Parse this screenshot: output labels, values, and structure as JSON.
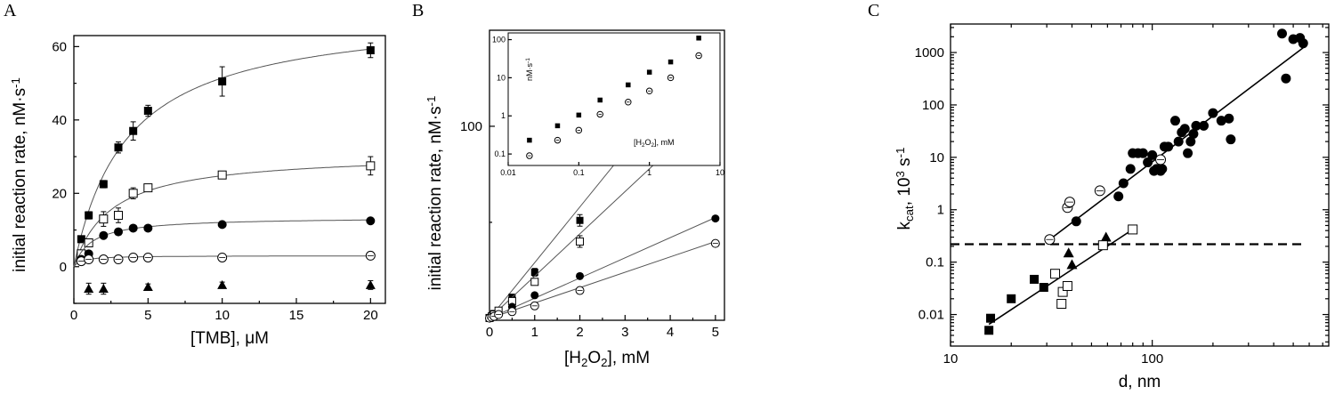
{
  "chart_data": [
    {
      "panel": "A",
      "type": "scatter",
      "xlabel": "[TMB], μM",
      "ylabel": "initial reaction rate, nM·s",
      "ylabel_sup": "-1",
      "xlim": [
        0,
        21
      ],
      "ylim": [
        -10,
        63
      ],
      "xticks": [
        0,
        5,
        10,
        15,
        20
      ],
      "yticks": [
        0,
        20,
        40,
        60
      ],
      "series": [
        {
          "marker": "filled-square",
          "fit": {
            "vmax": 70,
            "km": 3.6
          },
          "x": [
            0.5,
            1,
            2,
            3,
            4,
            5,
            10,
            20
          ],
          "y": [
            7.5,
            14,
            22.5,
            32.5,
            37,
            42.5,
            50.5,
            59
          ],
          "err": [
            0.8,
            1,
            1,
            1.5,
            2.5,
            1.5,
            4,
            2
          ]
        },
        {
          "marker": "open-square",
          "fit": {
            "vmax": 31,
            "km": 2.5
          },
          "x": [
            0.5,
            1,
            2,
            3,
            4,
            5,
            10,
            20
          ],
          "y": [
            3.5,
            6.5,
            13,
            14,
            20,
            21.5,
            25,
            27.5
          ],
          "err": [
            0.8,
            1,
            2,
            2,
            1.5,
            1,
            1,
            2.5
          ]
        },
        {
          "marker": "filled-circle",
          "fit": {
            "vmax": 13.5,
            "km": 1.2
          },
          "x": [
            0.5,
            1,
            2,
            3,
            4,
            5,
            10,
            20
          ],
          "y": [
            2,
            3.5,
            8.5,
            9.5,
            10.5,
            10.5,
            11.5,
            12.5
          ],
          "err": [
            0,
            0,
            0,
            0,
            0,
            0,
            0,
            0
          ]
        },
        {
          "marker": "open-circle",
          "fit": {
            "vmax": 3,
            "km": 0.5
          },
          "x": [
            0.5,
            1,
            2,
            3,
            4,
            5,
            10,
            20
          ],
          "y": [
            1.5,
            2,
            2,
            2,
            2.5,
            2.5,
            2.5,
            3
          ],
          "err": [
            0,
            0,
            0,
            0,
            0,
            0,
            0,
            0
          ]
        },
        {
          "marker": "filled-triangle",
          "fit": null,
          "x": [
            1,
            2,
            5,
            10,
            20
          ],
          "y": [
            -6,
            -6,
            -5.5,
            -5,
            -5
          ],
          "err": [
            1.5,
            1.5,
            0.8,
            0.8,
            1.2
          ]
        }
      ]
    },
    {
      "panel": "B",
      "type": "scatter",
      "xlabel_parts": [
        "[H",
        "2",
        "O",
        "2",
        "], mM"
      ],
      "ylabel": "initial reaction rate, nM·s",
      "ylabel_sup": "-1",
      "xlim": [
        0,
        5.2
      ],
      "ylim": [
        -1,
        150
      ],
      "xticks": [
        0,
        1,
        2,
        3,
        4,
        5
      ],
      "yticks": [
        100
      ],
      "series": [
        {
          "marker": "filled-square",
          "slope": 29,
          "x": [
            0,
            0.05,
            0.1,
            0.2,
            0.5,
            1,
            2,
            5
          ],
          "y": [
            0.2,
            1,
            2.5,
            4,
            11,
            24,
            51,
            120
          ],
          "err": [
            0,
            0,
            0,
            0,
            1,
            2,
            3,
            3
          ]
        },
        {
          "marker": "open-square",
          "slope": 22,
          "x": [
            0,
            0.05,
            0.1,
            0.2,
            0.5,
            1,
            2,
            5
          ],
          "y": [
            0.2,
            1,
            2,
            4,
            9,
            19,
            40,
            94
          ],
          "err": [
            0,
            0,
            0,
            0,
            1,
            1.5,
            3,
            2
          ]
        },
        {
          "marker": "filled-circle",
          "slope": 10.5,
          "x": [
            0,
            0.05,
            0.1,
            0.2,
            0.5,
            1,
            2,
            5
          ],
          "y": [
            0.1,
            0.5,
            1,
            2,
            6,
            12,
            22,
            52
          ],
          "err": [
            0,
            0,
            0,
            0,
            0,
            0,
            0,
            0
          ]
        },
        {
          "marker": "open-circle",
          "slope": 8,
          "x": [
            0,
            0.05,
            0.1,
            0.2,
            0.5,
            1,
            2,
            5
          ],
          "y": [
            0.1,
            0.5,
            1,
            2,
            3.5,
            6.5,
            14.5,
            39
          ],
          "err": [
            0,
            0,
            0,
            0,
            0,
            0,
            0,
            0
          ]
        }
      ],
      "inset": {
        "type": "scatter",
        "scale": "log-log",
        "ylabel": "nM·s",
        "ylabel_sup": "-1",
        "xlabel_parts": [
          "[H",
          "2",
          "O",
          "2",
          "], mM"
        ],
        "xlim": [
          0.01,
          10
        ],
        "ylim": [
          0.05,
          150
        ],
        "xticks": [
          {
            "v": 0.01,
            "t": "0.01"
          },
          {
            "v": 0.1,
            "t": "0.1"
          },
          {
            "v": 1,
            "t": "1"
          },
          {
            "v": 10,
            "t": "10"
          }
        ],
        "yticks": [
          {
            "v": 0.1,
            "t": "0.1"
          },
          {
            "v": 1,
            "t": "1"
          },
          {
            "v": 10,
            "t": "10"
          },
          {
            "v": 100,
            "t": "100"
          }
        ],
        "series": [
          {
            "marker": "filled-square",
            "x": [
              0.02,
              0.05,
              0.1,
              0.2,
              0.5,
              1,
              2,
              5
            ],
            "y": [
              0.23,
              0.55,
              1.05,
              2.6,
              6.5,
              14,
              26,
              110
            ]
          },
          {
            "marker": "open-circle",
            "x": [
              0.02,
              0.05,
              0.1,
              0.2,
              0.5,
              1,
              2,
              5
            ],
            "y": [
              0.09,
              0.23,
              0.42,
              1.1,
              2.3,
              4.5,
              10,
              38
            ]
          }
        ]
      }
    },
    {
      "panel": "C",
      "type": "scatter",
      "scale": "log-log",
      "xlabel": "d, nm",
      "ylabel_parts": [
        "k",
        "cat",
        ", 10",
        "3",
        " s",
        "-1"
      ],
      "xlim": [
        10,
        750
      ],
      "ylim": [
        0.0025,
        3500
      ],
      "xticks": [
        {
          "v": 10,
          "t": "10"
        },
        {
          "v": 100,
          "t": "100"
        }
      ],
      "yticks": [
        {
          "v": 0.01,
          "t": "0.01"
        },
        {
          "v": 0.1,
          "t": "0.1"
        },
        {
          "v": 1,
          "t": "1"
        },
        {
          "v": 10,
          "t": "10"
        },
        {
          "v": 100,
          "t": "100"
        },
        {
          "v": 1000,
          "t": "1000"
        }
      ],
      "hline": 0.22,
      "fit_lines": [
        {
          "x": [
            31,
            570
          ],
          "y": [
            0.27,
            1300
          ]
        },
        {
          "x": [
            15.5,
            80
          ],
          "y": [
            0.0065,
            0.42
          ]
        }
      ],
      "series": [
        {
          "marker": "filled-circle",
          "x": [
            42,
            68,
            72,
            78,
            80,
            85,
            90,
            95,
            100,
            102,
            105,
            110,
            112,
            115,
            120,
            130,
            135,
            140,
            145,
            150,
            155,
            160,
            165,
            180,
            200,
            220,
            240,
            245,
            440,
            460,
            500,
            540,
            560
          ],
          "y": [
            0.6,
            1.8,
            3.2,
            6,
            12,
            12,
            12,
            8,
            11,
            5.5,
            6,
            5.5,
            6,
            16,
            16,
            50,
            20,
            30,
            35,
            12,
            20,
            28,
            40,
            40,
            70,
            50,
            55,
            22,
            2300,
            320,
            1800,
            1900,
            1500
          ]
        },
        {
          "marker": "open-circle",
          "x": [
            31,
            38,
            39,
            55,
            110
          ],
          "y": [
            0.27,
            1.1,
            1.4,
            2.3,
            9
          ]
        },
        {
          "marker": "filled-triangle",
          "x": [
            38.5,
            40,
            59
          ],
          "y": [
            0.15,
            0.09,
            0.3
          ]
        },
        {
          "marker": "filled-square",
          "x": [
            15.5,
            15.8,
            20,
            26,
            29
          ],
          "y": [
            0.005,
            0.0085,
            0.02,
            0.047,
            0.033
          ]
        },
        {
          "marker": "open-square",
          "x": [
            33,
            35.5,
            36,
            38,
            57,
            80
          ],
          "y": [
            0.06,
            0.016,
            0.027,
            0.035,
            0.21,
            0.42
          ]
        }
      ]
    }
  ],
  "panels": {
    "A": {
      "letter": "A"
    },
    "B": {
      "letter": "B"
    },
    "C": {
      "letter": "C"
    }
  }
}
